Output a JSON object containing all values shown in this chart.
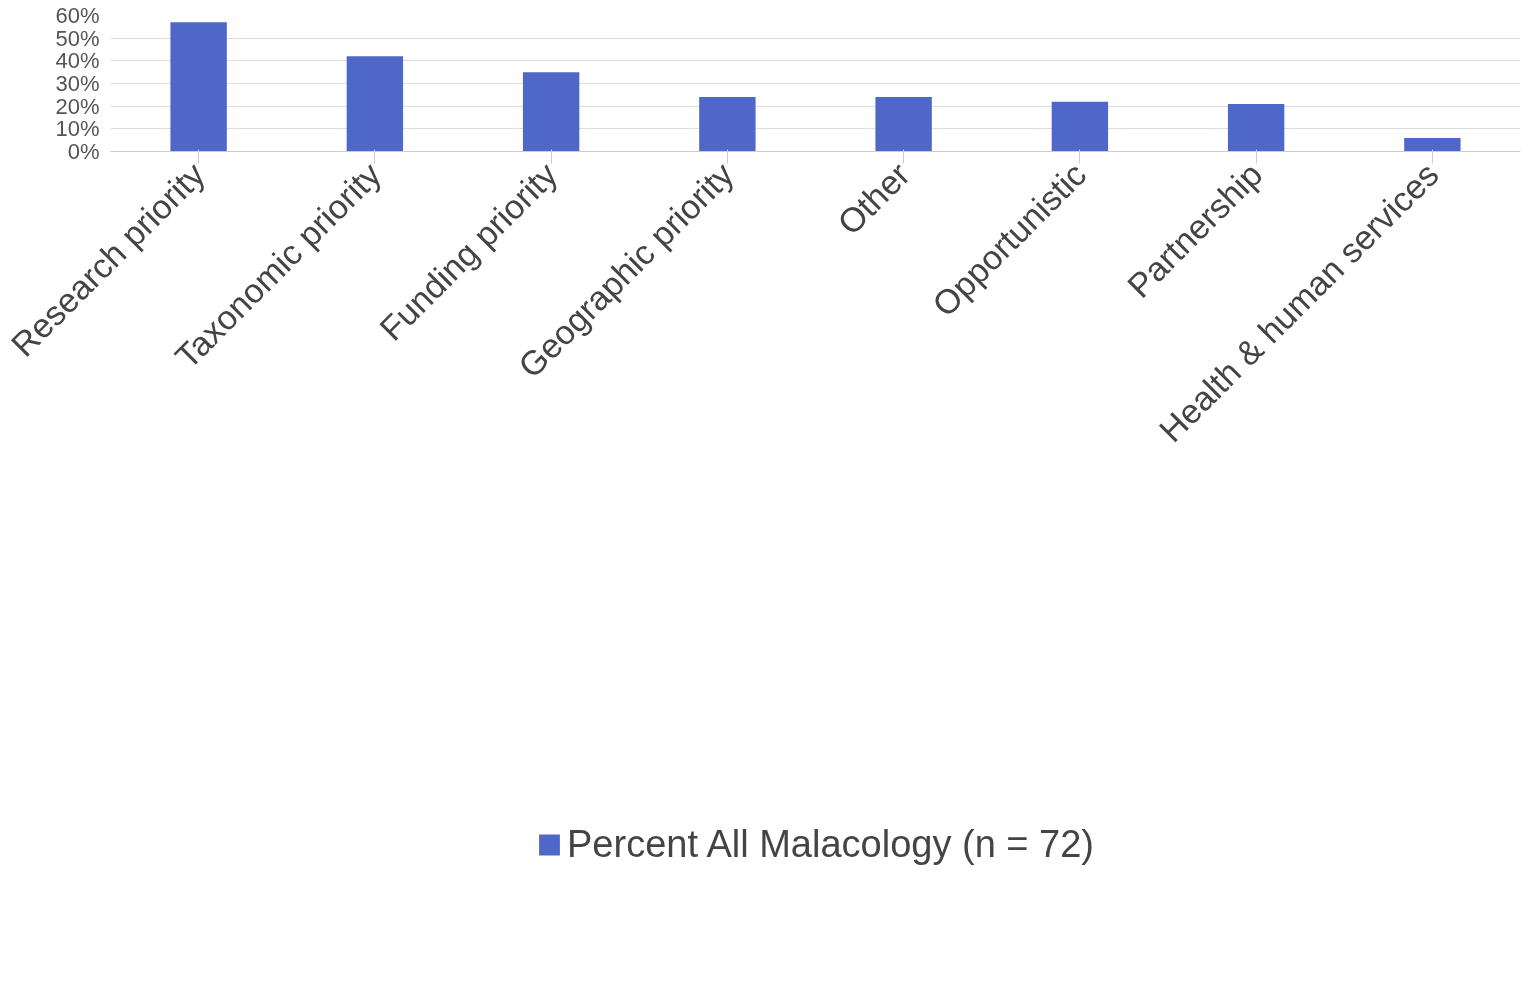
{
  "chart_data": {
    "type": "bar",
    "categories": [
      "Research priority",
      "Taxonomic priority",
      "Funding priority",
      "Geographic priority",
      "Other",
      "Opportunistic",
      "Partnership",
      "Health & human services"
    ],
    "series": [
      {
        "name": "Percent All Malacology (n = 72)",
        "color": "#4f67c8",
        "values": [
          57,
          42,
          35,
          24,
          24,
          22,
          21,
          6
        ]
      }
    ],
    "ylim": [
      0,
      60
    ],
    "yticks": [
      {
        "value": 0,
        "label": "0%"
      },
      {
        "value": 10,
        "label": "10%"
      },
      {
        "value": 20,
        "label": "20%"
      },
      {
        "value": 30,
        "label": "30%"
      },
      {
        "value": 40,
        "label": "40%"
      },
      {
        "value": 50,
        "label": "50%"
      },
      {
        "value": 60,
        "label": "60%"
      }
    ],
    "grid": "y",
    "legend": "bottom"
  }
}
